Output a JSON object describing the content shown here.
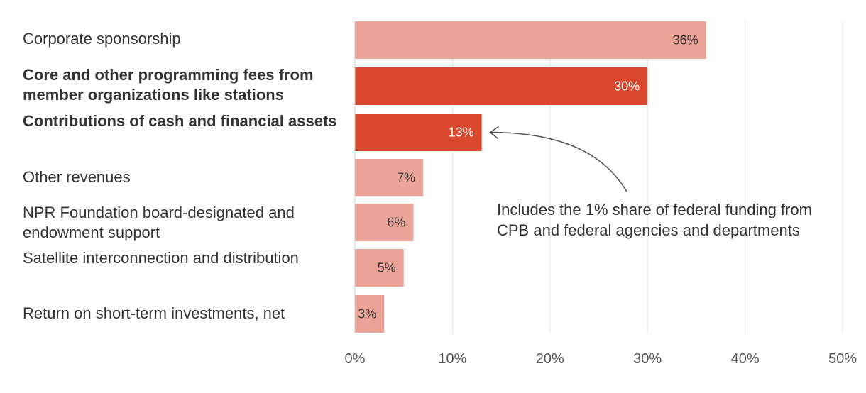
{
  "chart_data": {
    "type": "bar",
    "orientation": "horizontal",
    "categories": [
      "Corporate sponsorship",
      "Core and other programming fees from member organizations like stations",
      "Contributions of cash and financial assets",
      "Other revenues",
      "NPR Foundation board-designated and endowment support",
      "Satellite interconnection and distribution",
      "Return on short-term investments, net"
    ],
    "values": [
      36,
      30,
      13,
      7,
      6,
      5,
      3
    ],
    "data_labels": [
      "36%",
      "30%",
      "13%",
      "7%",
      "6%",
      "5%",
      "3%"
    ],
    "highlighted": [
      false,
      true,
      true,
      false,
      false,
      false,
      false
    ],
    "xlim": [
      0,
      50
    ],
    "x_ticks": [
      0,
      10,
      20,
      30,
      40,
      50
    ],
    "x_tick_labels": [
      "0%",
      "10%",
      "20%",
      "30%",
      "40%",
      "50%"
    ],
    "grid": "vertical",
    "annotation": {
      "text": "Includes the 1% share of federal funding from CPB and federal agencies and departments",
      "points_to_category_index": 2
    },
    "colors": {
      "base": "#eca397",
      "highlight": "#d9472d",
      "label_on_base": "#333333",
      "label_on_highlight": "#ffffff",
      "grid": "#e3e3e3",
      "axis": "#cccccc",
      "arrow": "#555555"
    }
  }
}
